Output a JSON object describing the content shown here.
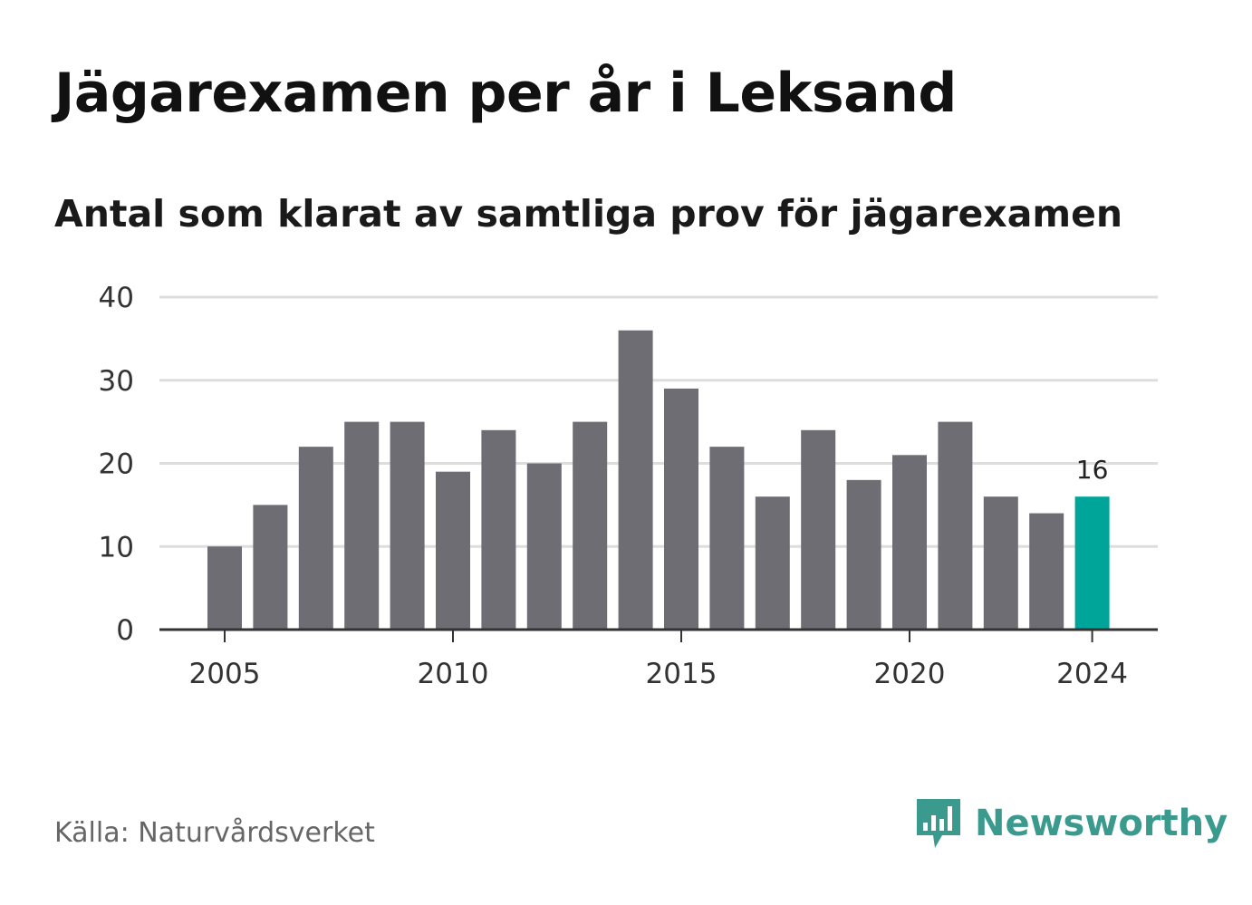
{
  "title": "Jägarexamen per år i Leksand",
  "subtitle": "Antal som klarat av samtliga prov för jägarexamen",
  "source": "Källa: Naturvårdsverket",
  "brand": {
    "name": "Newsworthy",
    "icon": "newsworthy-logo-icon",
    "color": "#3a9a8e"
  },
  "colors": {
    "bar": "#6e6d73",
    "highlight": "#00a59a",
    "grid": "#dddddd",
    "axis": "#333333"
  },
  "chart_data": {
    "type": "bar",
    "title": "Jägarexamen per år i Leksand",
    "subtitle": "Antal som klarat av samtliga prov för jägarexamen",
    "x": [
      2005,
      2006,
      2007,
      2008,
      2009,
      2010,
      2011,
      2012,
      2013,
      2014,
      2015,
      2016,
      2017,
      2018,
      2019,
      2020,
      2021,
      2022,
      2023,
      2024
    ],
    "values": [
      10,
      15,
      22,
      25,
      25,
      19,
      24,
      20,
      25,
      36,
      29,
      22,
      16,
      24,
      18,
      21,
      25,
      16,
      14,
      16
    ],
    "ylim": [
      0,
      40
    ],
    "yticks": [
      0,
      10,
      20,
      30,
      40
    ],
    "xticks": [
      2005,
      2010,
      2015,
      2020,
      2024
    ],
    "highlight": {
      "x": 2024,
      "label": "16"
    },
    "grid": true
  }
}
